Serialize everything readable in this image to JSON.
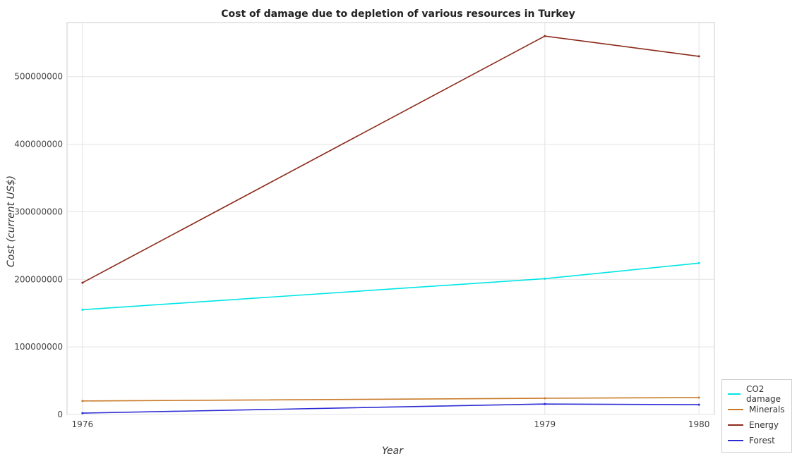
{
  "chart_data": {
    "type": "line",
    "title": "Cost of damage due to depletion of various resources in Turkey",
    "xlabel": "Year",
    "ylabel": "Cost (current US$)",
    "x": [
      "1976",
      "1979",
      "1980"
    ],
    "ylim": [
      0,
      580000000
    ],
    "yticks": [
      0,
      100000000,
      200000000,
      300000000,
      400000000,
      500000000
    ],
    "ytick_labels": [
      "0",
      "100000000",
      "200000000",
      "300000000",
      "400000000",
      "500000000"
    ],
    "grid": true,
    "legend_position": "bottom-right",
    "series": [
      {
        "name": "CO2 damage",
        "color": "#00e5e5",
        "values": [
          155000000,
          201000000,
          224000000
        ]
      },
      {
        "name": "Minerals",
        "color": "#c97b2a",
        "values": [
          20000000,
          24000000,
          25000000
        ]
      },
      {
        "name": "Energy",
        "color": "#8b2a1a",
        "values": [
          195000000,
          560000000,
          530000000
        ]
      },
      {
        "name": "Forest",
        "color": "#2b2bd6",
        "values": [
          2000000,
          15500000,
          14500000
        ]
      }
    ]
  }
}
